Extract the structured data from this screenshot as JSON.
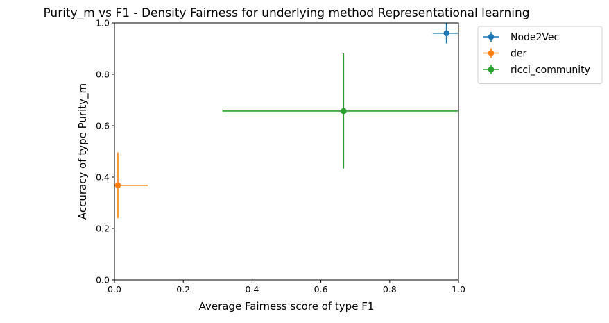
{
  "chart_data": {
    "type": "scatter",
    "title": "Purity_m vs F1 - Density Fairness for underlying method Representational learning",
    "xlabel": "Average Fairness score of type F1",
    "ylabel": "Accuracy of type Purity_m",
    "xlim": [
      0.0,
      1.0
    ],
    "ylim": [
      0.0,
      1.0
    ],
    "xticks": [
      "0.0",
      "0.2",
      "0.4",
      "0.6",
      "0.8",
      "1.0"
    ],
    "yticks": [
      "0.0",
      "0.2",
      "0.4",
      "0.6",
      "0.8",
      "1.0"
    ],
    "grid": false,
    "legend_position": "outside-upper-right",
    "series": [
      {
        "name": "Node2Vec",
        "color": "#1f77b4",
        "x": 0.965,
        "y": 0.96,
        "xerr": [
          0.04,
          0.04
        ],
        "yerr": [
          0.04,
          0.04
        ]
      },
      {
        "name": "der",
        "color": "#ff7f0e",
        "x": 0.01,
        "y": 0.368,
        "xerr": [
          0.01,
          0.087
        ],
        "yerr": [
          0.128,
          0.128
        ]
      },
      {
        "name": "ricci_community",
        "color": "#2ca02c",
        "x": 0.666,
        "y": 0.657,
        "xerr": [
          0.352,
          0.334
        ],
        "yerr": [
          0.224,
          0.224
        ]
      }
    ]
  }
}
